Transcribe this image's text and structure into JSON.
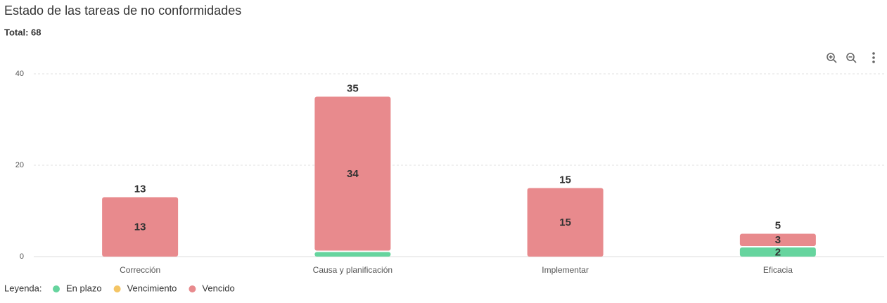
{
  "chart_data": {
    "type": "stacked-bar",
    "title": "Estado de las tareas de no conformidades",
    "subtitle": "Total: 68",
    "categories": [
      "Corrección",
      "Causa y planificación",
      "Implementar",
      "Eficacia"
    ],
    "series": [
      {
        "name": "En plazo",
        "color": "#66d49e",
        "values": [
          0,
          1,
          0,
          2
        ]
      },
      {
        "name": "Vencimiento",
        "color": "#f4c565",
        "values": [
          0,
          0,
          0,
          0
        ]
      },
      {
        "name": "Vencido",
        "color": "#e88a8d",
        "values": [
          13,
          34,
          15,
          3
        ]
      }
    ],
    "totals": [
      13,
      35,
      15,
      5
    ],
    "legend_title": "Leyenda:",
    "ylim": [
      0,
      40
    ],
    "yticks": [
      0,
      20,
      40
    ],
    "grid": true
  }
}
